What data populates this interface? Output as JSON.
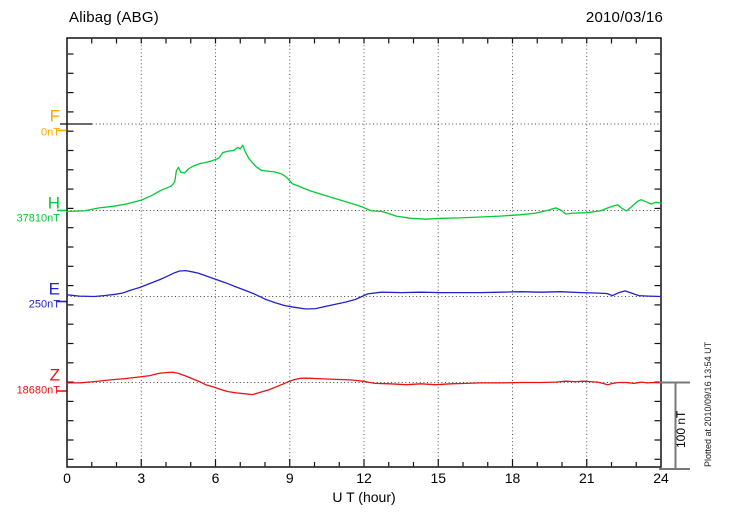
{
  "chart_data": {
    "type": "line",
    "title": "Alibag (ABG)",
    "date_label": "2010/03/16",
    "xlabel": "U T (hour)",
    "xlim": [
      0,
      24
    ],
    "x_major_ticks": [
      0,
      3,
      6,
      9,
      12,
      15,
      18,
      21,
      24
    ],
    "x_minor_tick_every_hours": 1,
    "grid": "dotted vertical lines every 3 hours; dotted horizontal line at each component baseline",
    "legend_position": "left margin, one label per trace baseline",
    "scale_bar": {
      "label": "100 nT",
      "span_nT": 100
    },
    "plotted_note": "Plotted at 2010/09/16 13:54 UT",
    "colors": {
      "axis": "#111111",
      "grid": "#555555",
      "scale_bar": "#777777"
    },
    "series": [
      {
        "name": "F",
        "ref_label": "0nT",
        "color": "#FFA500",
        "points_hour_dnT": []
      },
      {
        "name": "H",
        "ref_label": "37810nT",
        "color": "#00CC33",
        "points_hour_dnT": [
          [
            0,
            -1
          ],
          [
            0.7,
            -0.5
          ],
          [
            1.3,
            3
          ],
          [
            1.9,
            5
          ],
          [
            2.4,
            7.5
          ],
          [
            3,
            12
          ],
          [
            3.4,
            17
          ],
          [
            3.8,
            23.5
          ],
          [
            4.2,
            28
          ],
          [
            4.35,
            33
          ],
          [
            4.42,
            46
          ],
          [
            4.5,
            50
          ],
          [
            4.6,
            44
          ],
          [
            4.75,
            43.5
          ],
          [
            4.9,
            48
          ],
          [
            5.1,
            51.5
          ],
          [
            5.4,
            54.5
          ],
          [
            5.6,
            55.5
          ],
          [
            5.85,
            57.5
          ],
          [
            6.05,
            59.5
          ],
          [
            6.15,
            61
          ],
          [
            6.3,
            67
          ],
          [
            6.5,
            68.5
          ],
          [
            6.75,
            69.5
          ],
          [
            6.9,
            73
          ],
          [
            7,
            71.5
          ],
          [
            7.1,
            75.5
          ],
          [
            7.2,
            68
          ],
          [
            7.35,
            60
          ],
          [
            7.5,
            55
          ],
          [
            7.65,
            50.5
          ],
          [
            7.85,
            46.5
          ],
          [
            8.1,
            45.5
          ],
          [
            8.4,
            44.5
          ],
          [
            8.65,
            42.5
          ],
          [
            8.85,
            39
          ],
          [
            9,
            34.5
          ],
          [
            9.1,
            31
          ],
          [
            9.25,
            29.5
          ],
          [
            9.5,
            26.5
          ],
          [
            9.85,
            22.5
          ],
          [
            10.25,
            19
          ],
          [
            10.65,
            15.5
          ],
          [
            11.05,
            12
          ],
          [
            11.45,
            8.5
          ],
          [
            11.9,
            4.5
          ],
          [
            12.3,
            -0.5
          ],
          [
            12.7,
            -1
          ],
          [
            12.95,
            -3
          ],
          [
            13.3,
            -6.5
          ],
          [
            13.9,
            -9
          ],
          [
            14.5,
            -10
          ],
          [
            15.1,
            -9
          ],
          [
            15.9,
            -8.5
          ],
          [
            16.7,
            -7.5
          ],
          [
            17.5,
            -6.5
          ],
          [
            18.3,
            -5
          ],
          [
            18.95,
            -3
          ],
          [
            19.45,
            0.5
          ],
          [
            19.75,
            3
          ],
          [
            19.95,
            0.5
          ],
          [
            20.15,
            -4
          ],
          [
            20.45,
            -3
          ],
          [
            21,
            -2.5
          ],
          [
            21.55,
            -0.5
          ],
          [
            21.85,
            3
          ],
          [
            22.1,
            5.5
          ],
          [
            22.25,
            6.5
          ],
          [
            22.4,
            3
          ],
          [
            22.6,
            -0.5
          ],
          [
            22.8,
            4
          ],
          [
            23.05,
            10.5
          ],
          [
            23.2,
            12.5
          ],
          [
            23.4,
            10
          ],
          [
            23.6,
            7.5
          ],
          [
            23.8,
            9.5
          ],
          [
            24,
            8.5
          ]
        ]
      },
      {
        "name": "E",
        "ref_label": "250nT",
        "color": "#2222CC",
        "points_hour_dnT": [
          [
            0,
            2
          ],
          [
            0.5,
            0.5
          ],
          [
            1.1,
            0
          ],
          [
            1.5,
            1
          ],
          [
            1.95,
            2.5
          ],
          [
            2.25,
            4
          ],
          [
            2.55,
            7
          ],
          [
            2.95,
            10.5
          ],
          [
            3.35,
            15
          ],
          [
            3.75,
            19.5
          ],
          [
            4.1,
            24
          ],
          [
            4.35,
            27.5
          ],
          [
            4.55,
            29.5
          ],
          [
            4.8,
            30
          ],
          [
            5.05,
            28.5
          ],
          [
            5.3,
            27
          ],
          [
            5.6,
            24
          ],
          [
            6,
            20
          ],
          [
            6.4,
            16
          ],
          [
            6.8,
            11.5
          ],
          [
            7.2,
            7
          ],
          [
            7.6,
            2.5
          ],
          [
            8,
            -3
          ],
          [
            8.4,
            -7
          ],
          [
            8.8,
            -10.5
          ],
          [
            9.2,
            -12.5
          ],
          [
            9.65,
            -14.5
          ],
          [
            10.05,
            -14
          ],
          [
            10.45,
            -11.5
          ],
          [
            10.85,
            -9
          ],
          [
            11.25,
            -6.5
          ],
          [
            11.65,
            -3.5
          ],
          [
            12.15,
            3
          ],
          [
            12.7,
            5
          ],
          [
            13.5,
            4.5
          ],
          [
            14.3,
            5
          ],
          [
            15.1,
            4.5
          ],
          [
            15.9,
            4.5
          ],
          [
            16.7,
            4.5
          ],
          [
            17.5,
            5
          ],
          [
            18.3,
            5.5
          ],
          [
            19.15,
            5
          ],
          [
            19.95,
            5.5
          ],
          [
            20.75,
            4.5
          ],
          [
            21.35,
            4
          ],
          [
            21.8,
            3.5
          ],
          [
            22.05,
            1
          ],
          [
            22.3,
            4.5
          ],
          [
            22.55,
            6.5
          ],
          [
            22.8,
            4
          ],
          [
            23.1,
            1
          ],
          [
            23.5,
            0.5
          ],
          [
            24,
            0
          ]
        ]
      },
      {
        "name": "Z",
        "ref_label": "18680nT",
        "color": "#EE1111",
        "points_hour_dnT": [
          [
            0,
            -0.5
          ],
          [
            0.5,
            -0.5
          ],
          [
            1.1,
            1
          ],
          [
            1.75,
            3
          ],
          [
            2.35,
            4.5
          ],
          [
            2.95,
            6.5
          ],
          [
            3.35,
            8
          ],
          [
            3.7,
            10.5
          ],
          [
            4,
            11.5
          ],
          [
            4.25,
            12
          ],
          [
            4.5,
            10.5
          ],
          [
            4.8,
            7.5
          ],
          [
            5.05,
            4.5
          ],
          [
            5.35,
            1
          ],
          [
            5.6,
            -2.5
          ],
          [
            5.9,
            -5
          ],
          [
            6.2,
            -8
          ],
          [
            6.5,
            -10.5
          ],
          [
            6.85,
            -12
          ],
          [
            7.15,
            -13
          ],
          [
            7.5,
            -14
          ],
          [
            7.8,
            -11.5
          ],
          [
            8.15,
            -8.5
          ],
          [
            8.45,
            -5
          ],
          [
            8.75,
            -1.5
          ],
          [
            8.95,
            1
          ],
          [
            9.2,
            3.5
          ],
          [
            9.45,
            5
          ],
          [
            9.75,
            5
          ],
          [
            10.1,
            4.5
          ],
          [
            10.5,
            4
          ],
          [
            11,
            3.5
          ],
          [
            11.45,
            3
          ],
          [
            11.95,
            1.5
          ],
          [
            12.45,
            -1
          ],
          [
            13.05,
            -1.5
          ],
          [
            13.7,
            -2.5
          ],
          [
            14.3,
            -1.5
          ],
          [
            14.9,
            -2.5
          ],
          [
            15.5,
            -1.5
          ],
          [
            16.1,
            -1
          ],
          [
            16.7,
            -0.5
          ],
          [
            17.5,
            -0.5
          ],
          [
            18.35,
            0
          ],
          [
            19.15,
            0
          ],
          [
            19.75,
            0.5
          ],
          [
            20.15,
            1.5
          ],
          [
            20.55,
            1
          ],
          [
            20.85,
            1.5
          ],
          [
            21.15,
            1
          ],
          [
            21.45,
            0.5
          ],
          [
            21.7,
            -1.5
          ],
          [
            21.85,
            -2.5
          ],
          [
            22.05,
            -1
          ],
          [
            22.3,
            0
          ],
          [
            22.6,
            0
          ],
          [
            22.9,
            -1
          ],
          [
            23.2,
            0.5
          ],
          [
            23.45,
            -0.5
          ],
          [
            23.7,
            0
          ],
          [
            24,
            -0.5
          ]
        ]
      }
    ]
  }
}
